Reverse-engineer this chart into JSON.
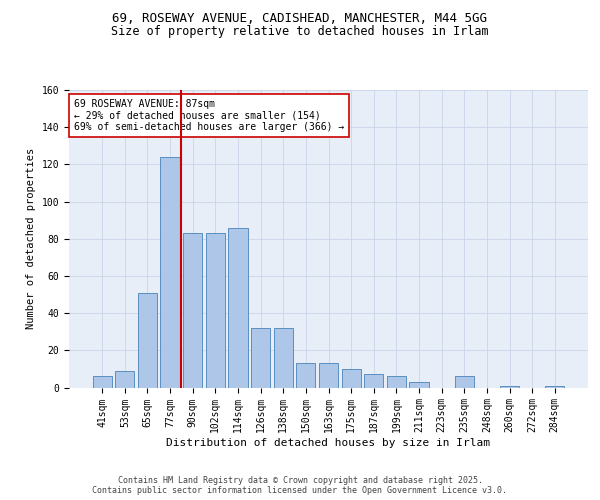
{
  "title1": "69, ROSEWAY AVENUE, CADISHEAD, MANCHESTER, M44 5GG",
  "title2": "Size of property relative to detached houses in Irlam",
  "xlabel": "Distribution of detached houses by size in Irlam",
  "ylabel": "Number of detached properties",
  "bar_labels": [
    "41sqm",
    "53sqm",
    "65sqm",
    "77sqm",
    "90sqm",
    "102sqm",
    "114sqm",
    "126sqm",
    "138sqm",
    "150sqm",
    "163sqm",
    "175sqm",
    "187sqm",
    "199sqm",
    "211sqm",
    "223sqm",
    "235sqm",
    "248sqm",
    "260sqm",
    "272sqm",
    "284sqm"
  ],
  "bar_values": [
    6,
    9,
    51,
    124,
    83,
    83,
    86,
    32,
    32,
    13,
    13,
    10,
    7,
    6,
    3,
    0,
    6,
    0,
    1,
    0,
    1
  ],
  "bar_color": "#aec6e8",
  "bar_edge_color": "#5a8fc0",
  "vline_x_index": 4,
  "vline_color": "#cc0000",
  "annotation_text": "69 ROSEWAY AVENUE: 87sqm\n← 29% of detached houses are smaller (154)\n69% of semi-detached houses are larger (366) →",
  "annotation_box_color": "#ffffff",
  "annotation_box_edge": "#cc0000",
  "ylim": [
    0,
    160
  ],
  "yticks": [
    0,
    20,
    40,
    60,
    80,
    100,
    120,
    140,
    160
  ],
  "grid_color": "#c8d4e8",
  "bg_color": "#e8eef8",
  "footer": "Contains HM Land Registry data © Crown copyright and database right 2025.\nContains public sector information licensed under the Open Government Licence v3.0.",
  "title_fontsize": 9,
  "subtitle_fontsize": 8.5,
  "tick_fontsize": 7,
  "ylabel_fontsize": 7.5,
  "xlabel_fontsize": 8,
  "annot_fontsize": 7,
  "footer_fontsize": 6
}
